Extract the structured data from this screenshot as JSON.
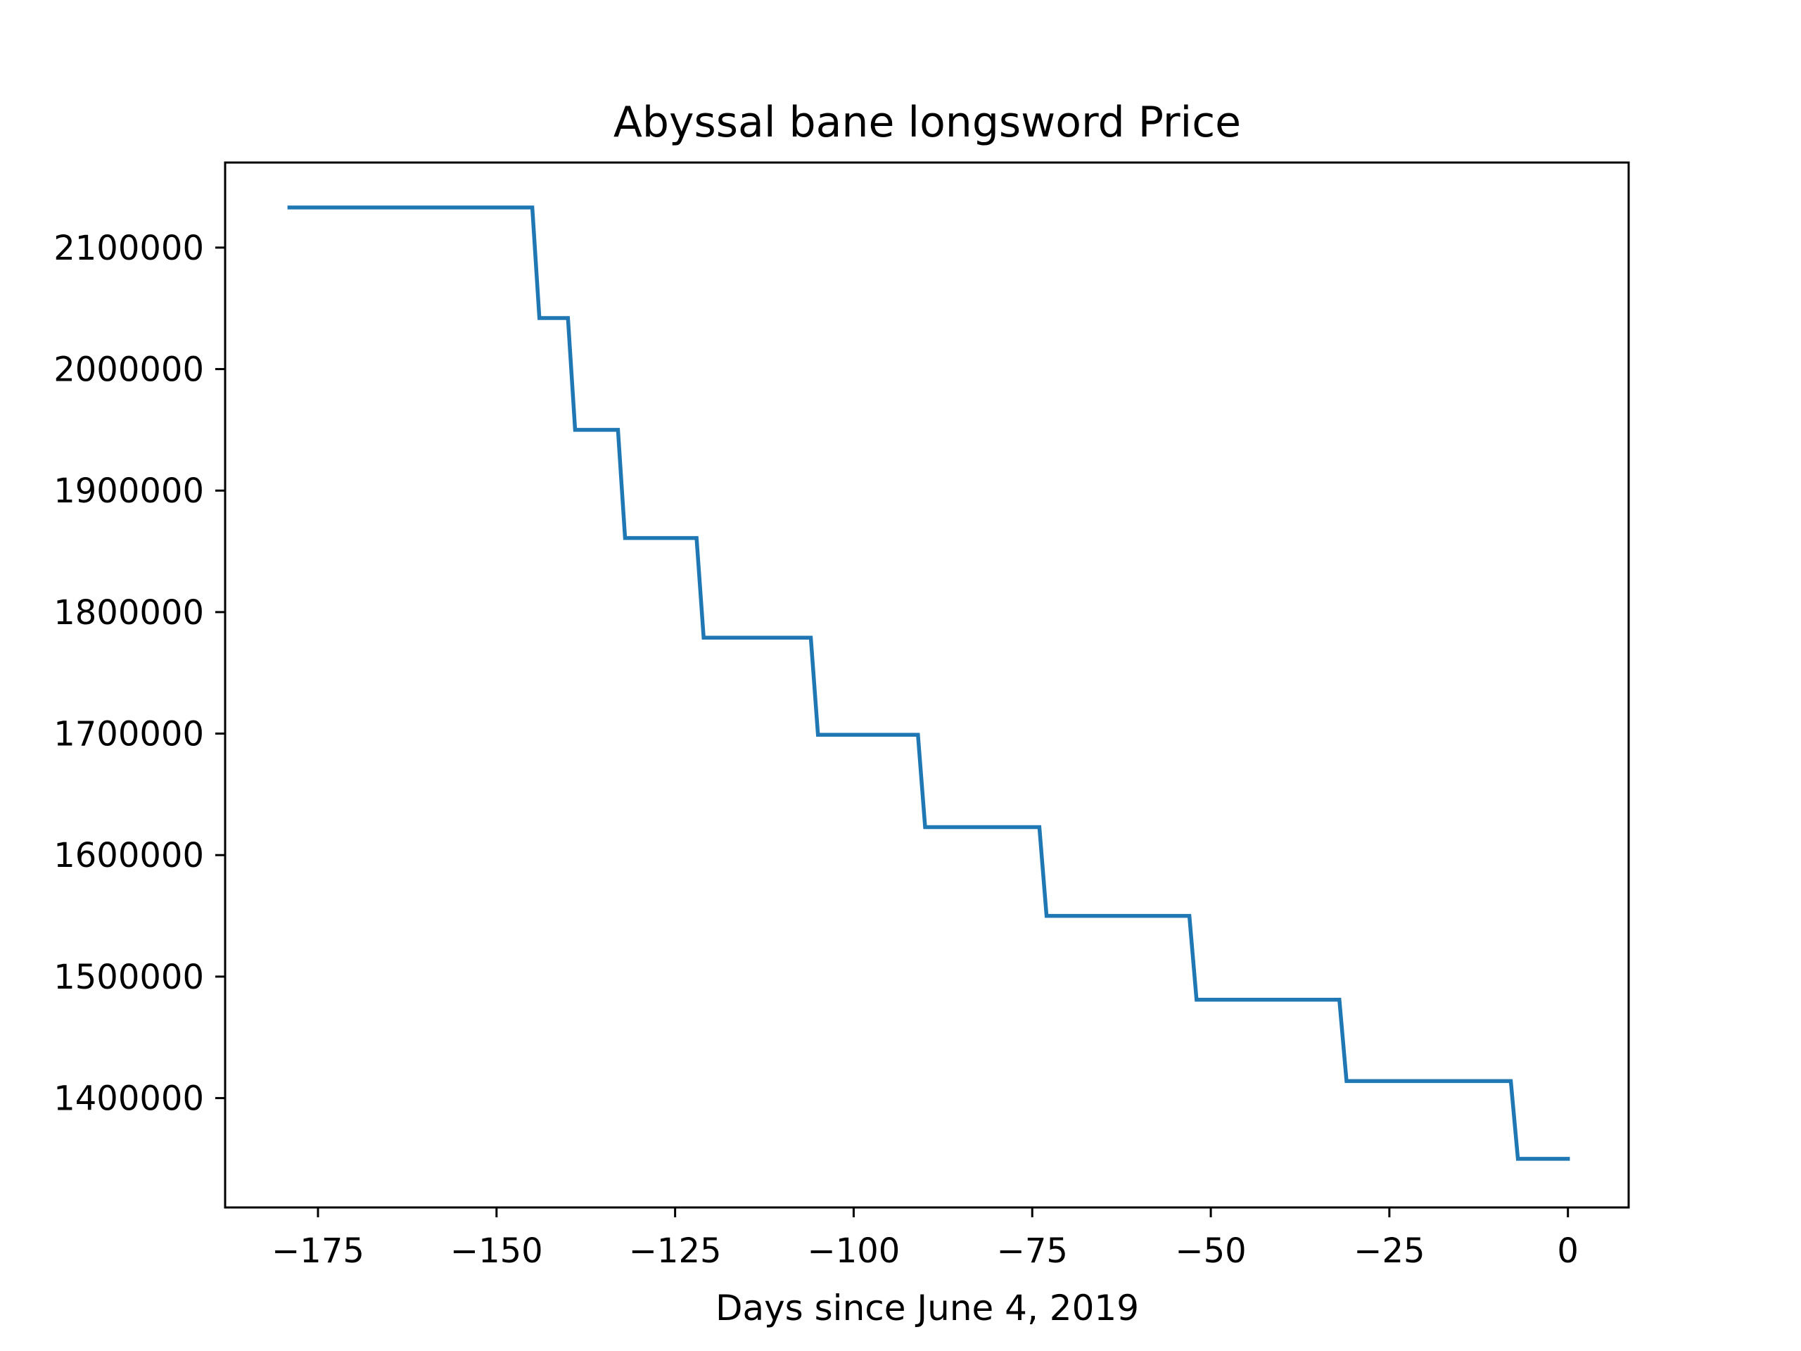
{
  "chart_data": {
    "type": "line",
    "title": "Abyssal bane longsword Price",
    "xlabel": "Days since June 4, 2019",
    "ylabel": "",
    "xlim": [
      -188,
      8.5
    ],
    "ylim": [
      1310000,
      2170000
    ],
    "xticks": [
      -175,
      -150,
      -125,
      -100,
      -75,
      -50,
      -25,
      0
    ],
    "xtick_labels": [
      "−175",
      "−150",
      "−125",
      "−100",
      "−75",
      "−50",
      "−25",
      "0"
    ],
    "yticks": [
      1400000,
      1500000,
      1600000,
      1700000,
      1800000,
      1900000,
      2000000,
      2100000
    ],
    "ytick_labels": [
      "1400000",
      "1500000",
      "1600000",
      "1700000",
      "1800000",
      "1900000",
      "2000000",
      "2100000"
    ],
    "grid": false,
    "series": [
      {
        "color": "#1f77b4",
        "x": [
          -179,
          -145,
          -144,
          -140,
          -139,
          -133,
          -132,
          -122,
          -121,
          -106,
          -105,
          -91,
          -90,
          -74,
          -73,
          -53,
          -52,
          -32,
          -31,
          -8,
          -7,
          0
        ],
        "y": [
          2133000,
          2133000,
          2042000,
          2042000,
          1950000,
          1950000,
          1861000,
          1861000,
          1779000,
          1779000,
          1699000,
          1699000,
          1623000,
          1623000,
          1550000,
          1550000,
          1481000,
          1481000,
          1414000,
          1414000,
          1350000,
          1350000
        ]
      }
    ]
  }
}
